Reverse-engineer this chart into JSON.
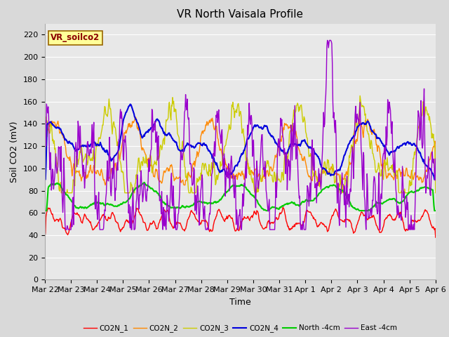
{
  "title": "VR North Vaisala Profile",
  "ylabel": "Soil CO2 (mV)",
  "xlabel": "Time",
  "annotation": "VR_soilco2",
  "ylim": [
    0,
    230
  ],
  "yticks": [
    0,
    20,
    40,
    60,
    80,
    100,
    120,
    140,
    160,
    180,
    200,
    220
  ],
  "x_labels": [
    "Mar 22",
    "Mar 23",
    "Mar 24",
    "Mar 25",
    "Mar 26",
    "Mar 27",
    "Mar 28",
    "Mar 29",
    "Mar 30",
    "Mar 31",
    "Apr 1",
    "Apr 2",
    "Apr 3",
    "Apr 4",
    "Apr 5",
    "Apr 6"
  ],
  "series_names": [
    "CO2N_1",
    "CO2N_2",
    "CO2N_3",
    "CO2N_4",
    "North -4cm",
    "East -4cm"
  ],
  "series_colors": [
    "#ff0000",
    "#ff8800",
    "#cccc00",
    "#0000dd",
    "#00cc00",
    "#9900cc"
  ],
  "series_lw": [
    1.0,
    1.0,
    1.0,
    1.5,
    1.5,
    1.0
  ],
  "bg_color": "#d9d9d9",
  "plot_bg": "#e8e8e8",
  "grid_color": "#ffffff",
  "title_fontsize": 11,
  "label_fontsize": 9,
  "tick_fontsize": 8
}
